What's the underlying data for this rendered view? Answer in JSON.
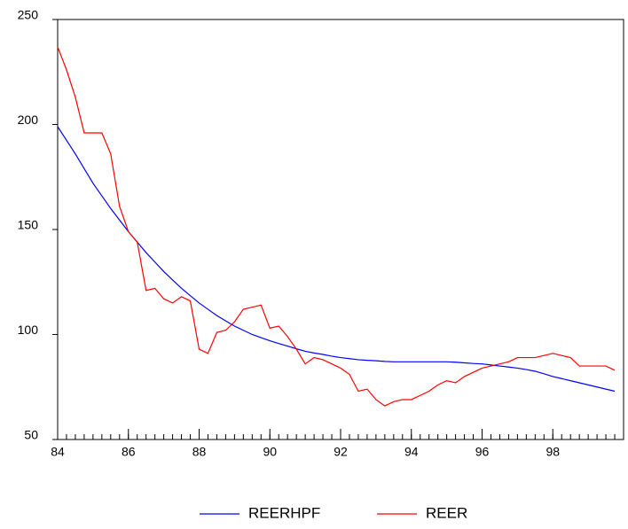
{
  "chart_data": {
    "type": "line",
    "x": [
      84,
      84.25,
      84.5,
      84.75,
      85,
      85.25,
      85.5,
      85.75,
      86,
      86.25,
      86.5,
      86.75,
      87,
      87.25,
      87.5,
      87.75,
      88,
      88.25,
      88.5,
      88.75,
      89,
      89.25,
      89.5,
      89.75,
      90,
      90.25,
      90.5,
      90.75,
      91,
      91.25,
      91.5,
      91.75,
      92,
      92.25,
      92.5,
      92.75,
      93,
      93.25,
      93.5,
      93.75,
      94,
      94.25,
      94.5,
      94.75,
      95,
      95.25,
      95.5,
      95.75,
      96,
      96.25,
      96.5,
      96.75,
      97,
      97.25,
      97.5,
      97.75,
      98,
      98.25,
      98.5,
      98.75,
      99,
      99.25,
      99.5,
      99.75
    ],
    "series": [
      {
        "name": "REERHPF",
        "color": "#0000ff",
        "values": [
          199,
          192.5,
          186,
          179,
          172,
          166,
          160,
          154.5,
          149,
          144,
          139,
          134.5,
          130,
          126,
          122,
          118.5,
          115,
          112,
          109,
          106.5,
          104,
          102,
          100,
          98.5,
          97,
          95.7,
          94.5,
          93.2,
          92,
          91.2,
          90.5,
          89.7,
          89,
          88.5,
          88,
          87.7,
          87.5,
          87.2,
          87,
          87,
          87,
          87,
          87,
          87,
          87,
          86.8,
          86.5,
          86.2,
          86,
          85.5,
          85,
          84.5,
          84,
          83.3,
          82.5,
          81.3,
          80,
          79,
          78,
          77,
          76,
          75,
          74,
          73
        ]
      },
      {
        "name": "REER",
        "color": "#ff0000",
        "values": [
          237,
          226,
          213,
          196,
          196,
          196,
          186,
          161,
          149,
          144,
          121,
          122,
          117,
          115,
          118,
          116,
          93,
          91,
          101,
          102,
          106,
          112,
          113,
          114,
          103,
          104,
          99,
          93,
          86,
          89,
          88,
          86,
          84,
          81,
          73,
          74,
          69,
          66,
          68,
          69,
          69,
          71,
          73,
          76,
          78,
          77,
          80,
          82,
          84,
          85,
          86,
          87,
          89,
          89,
          89,
          90,
          91,
          90,
          89,
          85,
          85,
          85,
          85,
          83
        ]
      }
    ],
    "xlim": [
      84,
      100
    ],
    "xticks": [
      84,
      86,
      88,
      90,
      92,
      94,
      96,
      98
    ],
    "ylim": [
      50,
      250
    ],
    "yticks": [
      50,
      100,
      150,
      200,
      250
    ],
    "grid": false,
    "legend": "bottom"
  }
}
